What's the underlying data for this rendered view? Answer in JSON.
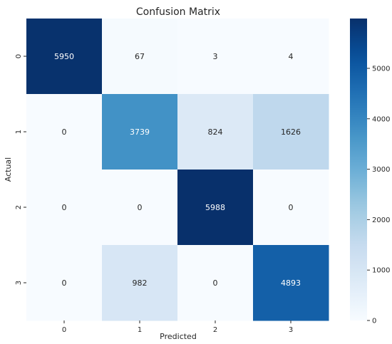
{
  "chart_data": {
    "type": "heatmap",
    "title": "Confusion Matrix",
    "xlabel": "Predicted",
    "ylabel": "Actual",
    "x_categories": [
      "0",
      "1",
      "2",
      "3"
    ],
    "y_categories": [
      "0",
      "1",
      "2",
      "3"
    ],
    "values": [
      [
        5950,
        67,
        3,
        4
      ],
      [
        0,
        3739,
        824,
        1626
      ],
      [
        0,
        0,
        5988,
        0
      ],
      [
        0,
        982,
        0,
        4893
      ]
    ],
    "colormap": "Blues",
    "colorbar": {
      "range": [
        0,
        5988
      ],
      "ticks": [
        0,
        1000,
        2000,
        3000,
        4000,
        5000
      ]
    }
  }
}
